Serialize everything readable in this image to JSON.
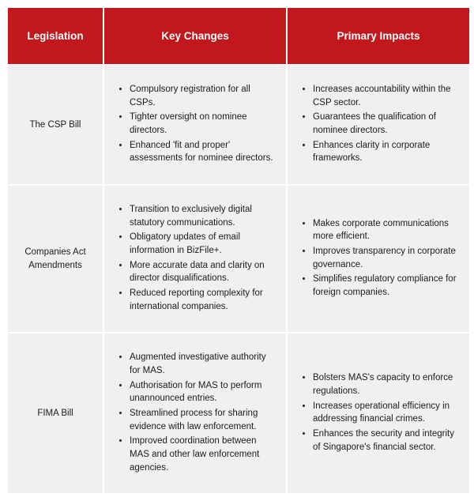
{
  "header": {
    "legislation": "Legislation",
    "keyChanges": "Key Changes",
    "primaryImpacts": "Primary Impacts"
  },
  "rows": [
    {
      "legislation": "The CSP Bill",
      "keyChanges": [
        "Compulsory registration for all CSPs.",
        "Tighter oversight on nominee directors.",
        "Enhanced 'fit and proper' assessments for nominee directors."
      ],
      "primaryImpacts": [
        "Increases accountability within the CSP sector.",
        "Guarantees the qualification of nominee directors.",
        "Enhances clarity in corporate frameworks."
      ]
    },
    {
      "legislation": "Companies Act Amendments",
      "keyChanges": [
        "Transition to exclusively digital statutory communications.",
        "Obligatory updates of email information in BizFile+.",
        "More accurate data and clarity on director disqualifications.",
        "Reduced reporting complexity for international companies."
      ],
      "primaryImpacts": [
        "Makes corporate communications more efficient.",
        "Improves transparency in corporate governance.",
        "Simplifies regulatory compliance for foreign companies."
      ]
    },
    {
      "legislation": "FIMA Bill",
      "keyChanges": [
        "Augmented investigative authority for MAS.",
        "Authorisation for MAS to perform unannounced entries.",
        "Streamlined process for sharing evidence with law enforcement.",
        "Improved coordination between MAS and other law enforcement agencies."
      ],
      "primaryImpacts": [
        "Bolsters MAS's capacity to enforce regulations.",
        "Increases operational efficiency in addressing financial crimes.",
        "Enhances the security and integrity of Singapore's financial sector."
      ]
    }
  ],
  "style": {
    "headerBg": "#c2181d",
    "headerText": "#ffffff",
    "cellBg": "#f0f0f0",
    "cellText": "#1b1b1b",
    "headerFontSize": 13.5,
    "cellFontSize": 11.5
  }
}
